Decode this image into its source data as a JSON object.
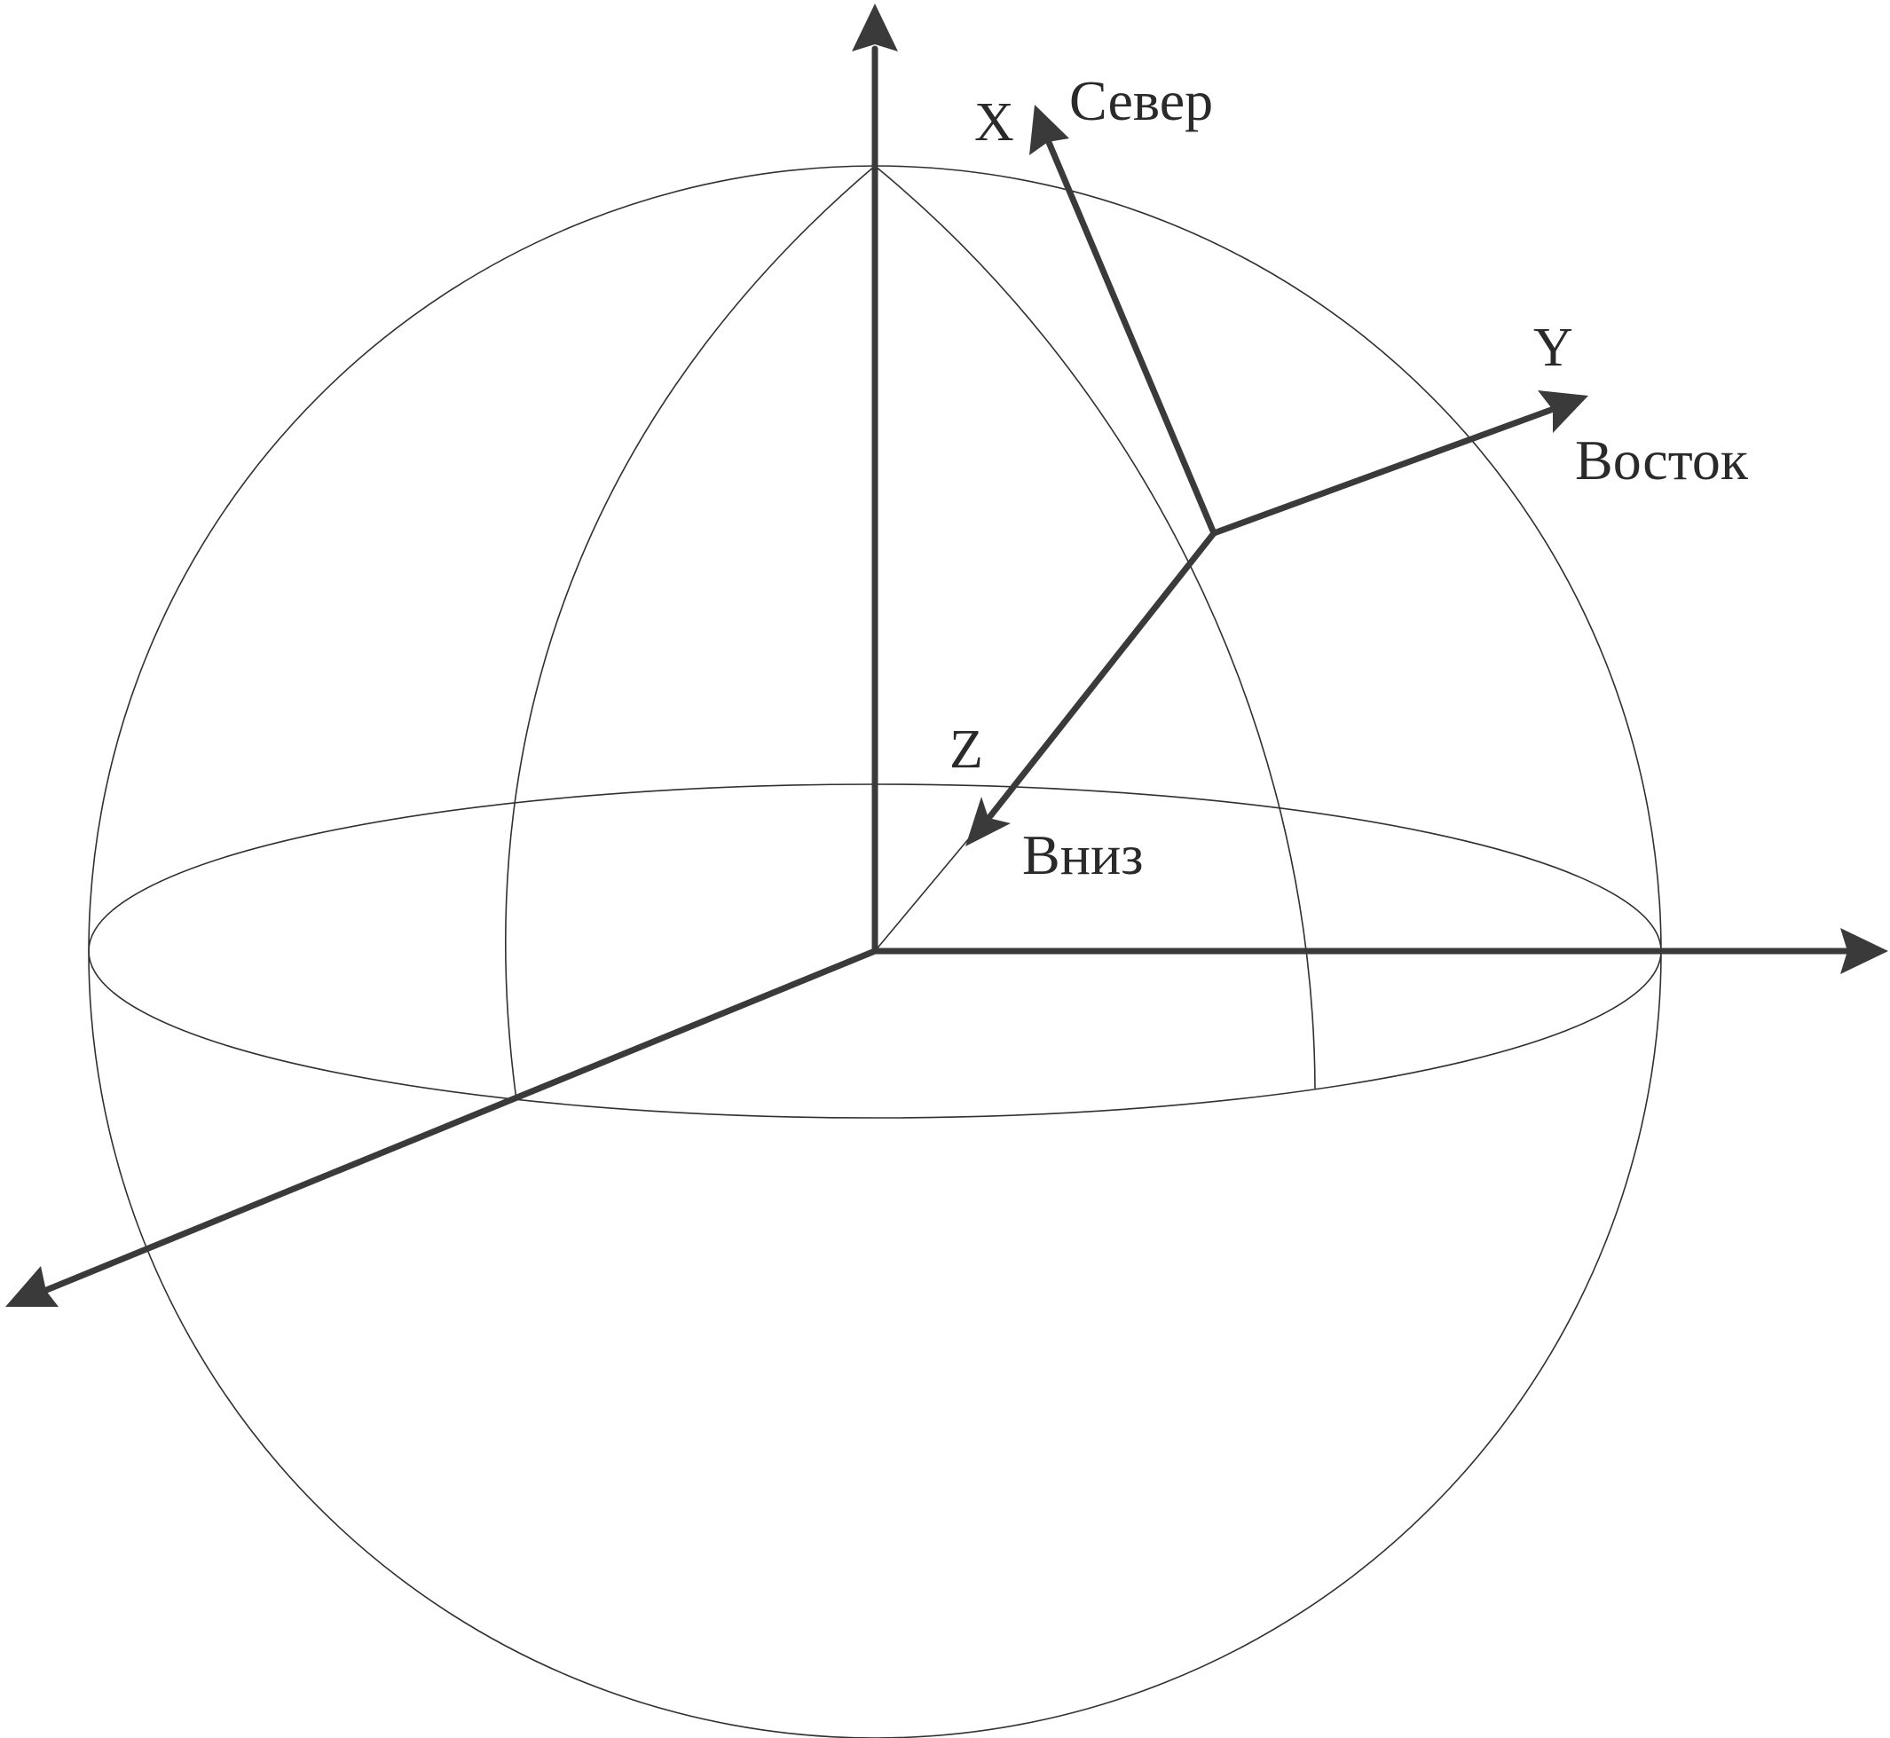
{
  "labels": {
    "x_axis": "X",
    "north": "Север",
    "y_axis": "Y",
    "east": "Восток",
    "z_axis": "Z",
    "down": "Вниз"
  },
  "colors": {
    "background": "#ffffff",
    "axis": "#3a3a3a",
    "outline": "#303030",
    "text": "#2a2a2a"
  }
}
